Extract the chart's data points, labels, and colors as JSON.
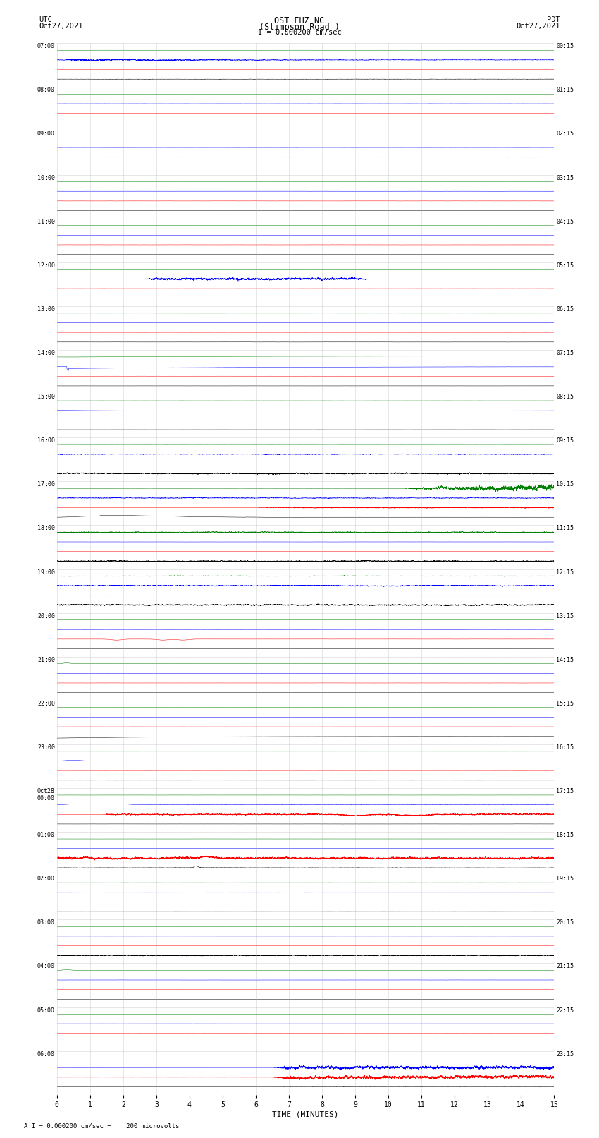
{
  "title_line1": "OST EHZ NC",
  "title_line2": "(Stimpson Road )",
  "scale_text": "I = 0.000200 cm/sec",
  "left_header": "UTC",
  "left_date": "Oct27,2021",
  "right_header": "PDT",
  "right_date": "Oct27,2021",
  "xlabel": "TIME (MINUTES)",
  "footer": "A I = 0.000200 cm/sec =    200 microvolts",
  "utc_labels": [
    "07:00",
    "08:00",
    "09:00",
    "10:00",
    "11:00",
    "12:00",
    "13:00",
    "14:00",
    "15:00",
    "16:00",
    "17:00",
    "18:00",
    "19:00",
    "20:00",
    "21:00",
    "22:00",
    "23:00",
    "Oct28\n00:00",
    "01:00",
    "02:00",
    "03:00",
    "04:00",
    "05:00",
    "06:00"
  ],
  "pdt_labels": [
    "00:15",
    "01:15",
    "02:15",
    "03:15",
    "04:15",
    "05:15",
    "06:15",
    "07:15",
    "08:15",
    "09:15",
    "10:15",
    "11:15",
    "12:15",
    "13:15",
    "14:15",
    "15:15",
    "16:15",
    "17:15",
    "18:15",
    "19:15",
    "20:15",
    "21:15",
    "22:15",
    "23:15"
  ],
  "n_rows": 24,
  "n_traces": 4,
  "trace_colors": [
    "black",
    "red",
    "blue",
    "green"
  ],
  "bg_color": "white",
  "trace_linewidth": 0.35,
  "minutes": 15,
  "grid_color": "#aaaaaa",
  "grid_alpha": 0.5,
  "noise_base": 0.008,
  "amp_scale": 0.055
}
